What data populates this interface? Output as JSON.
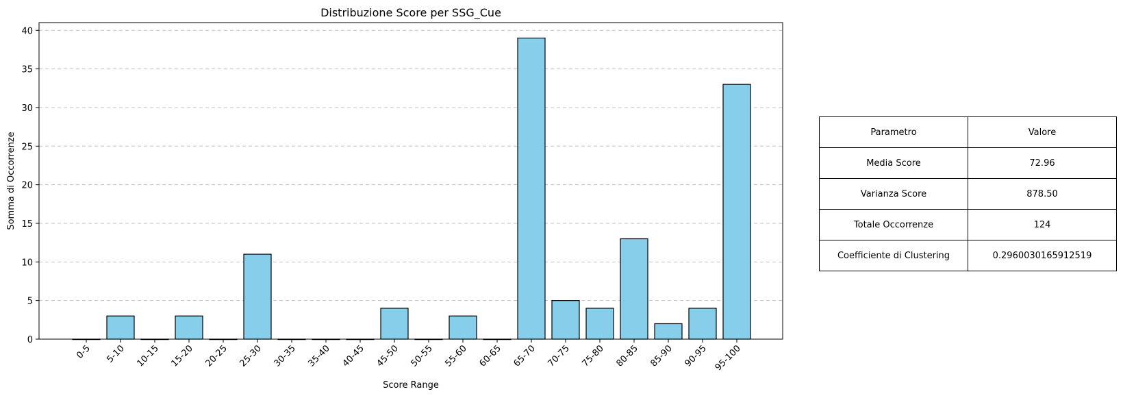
{
  "chart_data": {
    "type": "bar",
    "title": "Distribuzione Score per SSG_Cue",
    "xlabel": "Score Range",
    "ylabel": "Somma di Occorrenze",
    "categories": [
      "0-5",
      "5-10",
      "10-15",
      "15-20",
      "20-25",
      "25-30",
      "30-35",
      "35-40",
      "40-45",
      "45-50",
      "50-55",
      "55-60",
      "60-65",
      "65-70",
      "70-75",
      "75-80",
      "80-85",
      "85-90",
      "90-95",
      "95-100"
    ],
    "values": [
      0,
      3,
      0,
      3,
      0,
      11,
      0,
      0,
      0,
      4,
      0,
      3,
      0,
      39,
      5,
      4,
      13,
      2,
      4,
      33
    ],
    "ylim": [
      0,
      41
    ],
    "yticks": [
      0,
      5,
      10,
      15,
      20,
      25,
      30,
      35,
      40
    ],
    "grid": "y-dashed",
    "colors": {
      "bar_fill": "#87ceeb",
      "bar_edge": "#000000",
      "grid": "#c0c0c0"
    }
  },
  "table": {
    "header": [
      "Parametro",
      "Valore"
    ],
    "rows": [
      [
        "Media Score",
        "72.96"
      ],
      [
        "Varianza Score",
        "878.50"
      ],
      [
        "Totale Occorrenze",
        "124"
      ],
      [
        "Coefficiente di Clustering",
        "0.2960030165912519"
      ]
    ]
  }
}
